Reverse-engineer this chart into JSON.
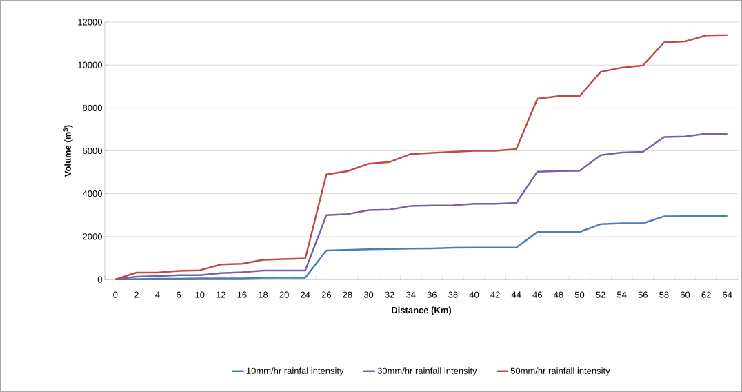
{
  "chart_data": {
    "type": "line",
    "xlabel": "Distance (Km)",
    "ylabel": "Volume (m$^{3}$)",
    "categories": [
      "0",
      "2",
      "4",
      "6",
      "10",
      "12",
      "16",
      "18",
      "20",
      "24",
      "26",
      "28",
      "30",
      "32",
      "34",
      "36",
      "38",
      "40",
      "42",
      "44",
      "46",
      "48",
      "50",
      "52",
      "54",
      "56",
      "58",
      "60",
      "62",
      "64"
    ],
    "series": [
      {
        "name": "10mm/hr rainfal intensity",
        "color": "#4a7ebb",
        "values": [
          0,
          20,
          30,
          30,
          50,
          50,
          50,
          80,
          80,
          80,
          1350,
          1380,
          1410,
          1420,
          1440,
          1450,
          1480,
          1490,
          1490,
          1490,
          2220,
          2220,
          2220,
          2580,
          2620,
          2620,
          2940,
          2950,
          2970,
          2970
        ]
      },
      {
        "name": "30mm/hr rainfall intensity",
        "color": "#7d60a0",
        "values": [
          0,
          130,
          160,
          200,
          200,
          300,
          340,
          420,
          420,
          420,
          3000,
          3050,
          3230,
          3260,
          3430,
          3450,
          3460,
          3530,
          3530,
          3570,
          5030,
          5060,
          5070,
          5800,
          5920,
          5950,
          6640,
          6670,
          6800,
          6800
        ]
      },
      {
        "name": "50mm/hr rainfall intensity",
        "color": "#be4b48",
        "values": [
          0,
          320,
          320,
          400,
          430,
          700,
          730,
          920,
          950,
          980,
          4900,
          5050,
          5400,
          5480,
          5850,
          5900,
          5950,
          6000,
          6000,
          6080,
          8430,
          8550,
          8550,
          9680,
          9880,
          9980,
          11050,
          11100,
          11380,
          11400
        ]
      }
    ],
    "ylim": [
      0,
      12000
    ],
    "yticks": [
      0,
      2000,
      4000,
      6000,
      8000,
      10000,
      12000
    ],
    "grid": "y",
    "legend": "bottom",
    "marker": "none",
    "line_style": "solid"
  }
}
